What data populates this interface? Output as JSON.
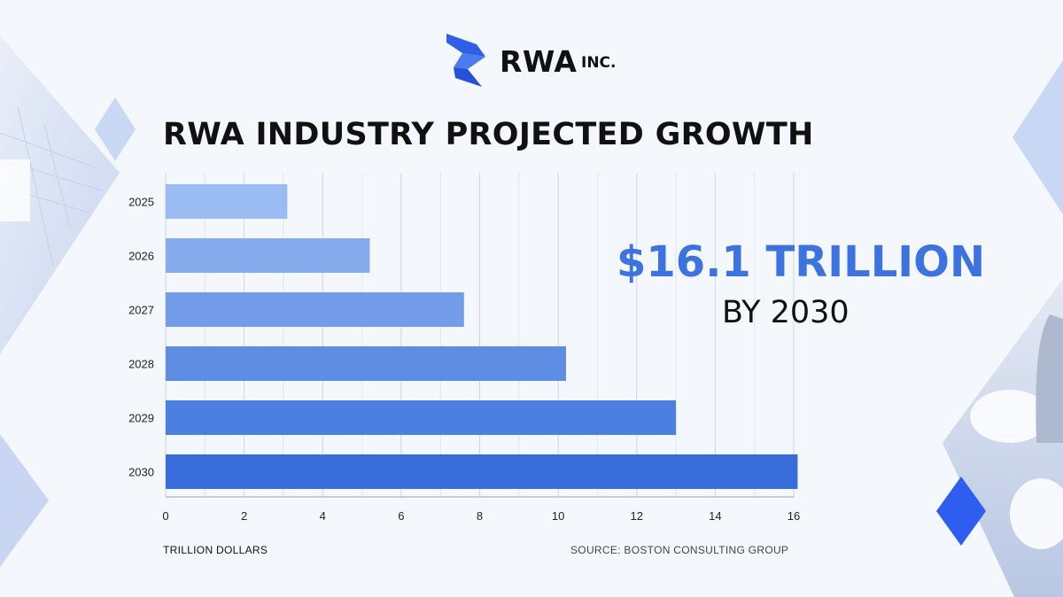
{
  "brand": {
    "name": "RWA",
    "suffix": "INC."
  },
  "callout": {
    "value": "$16.1 TRILLION",
    "subtitle": "BY 2030"
  },
  "footer": {
    "unit_label": "TRILLION DOLLARS",
    "source": "SOURCE: BOSTON CONSULTING GROUP"
  },
  "colors": {
    "accent": "#3d73de",
    "bar_colors": [
      "#9bbcf2",
      "#87acee",
      "#739de9",
      "#5e8ee4",
      "#4b80e0",
      "#386ddb"
    ]
  },
  "chart_data": {
    "type": "bar",
    "orientation": "horizontal",
    "title": "RWA INDUSTRY PROJECTED GROWTH",
    "categories": [
      "2025",
      "2026",
      "2027",
      "2028",
      "2029",
      "2030"
    ],
    "values": [
      3.1,
      5.2,
      7.6,
      10.2,
      13.0,
      16.1
    ],
    "xlabel": "TRILLION DOLLARS",
    "ylabel": "",
    "xlim": [
      0,
      16
    ],
    "x_ticks": [
      0,
      2,
      4,
      6,
      8,
      10,
      12,
      14,
      16
    ],
    "grid": true,
    "legend": "none"
  }
}
